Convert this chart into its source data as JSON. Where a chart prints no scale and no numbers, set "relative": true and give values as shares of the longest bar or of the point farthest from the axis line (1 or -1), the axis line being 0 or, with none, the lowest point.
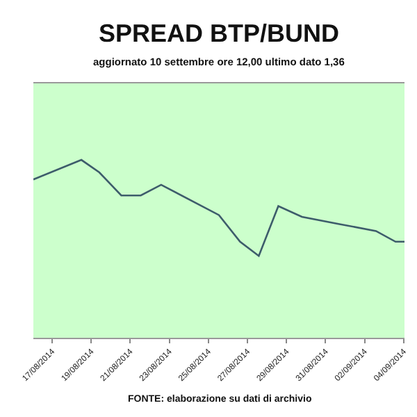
{
  "chart_data": {
    "type": "line",
    "title": "SPREAD BTP/BUND",
    "subtitle": "aggiornato 10 settembre ore 12,00 ultimo dato 1,36",
    "annotations": [
      "FONTE: elaborazione su dati di archivio"
    ],
    "relative": true,
    "x": [
      "2014-08-16T01:00",
      "2014-08-18T12:00",
      "2014-08-19T10:00",
      "2014-08-20T13:00",
      "2014-08-21T13:00",
      "2014-08-22T14:00",
      "2014-08-25T13:00",
      "2014-08-26T15:00",
      "2014-08-27T14:00",
      "2014-08-28T14:00",
      "2014-08-29T19:00",
      "2014-08-31T16:00",
      "2014-09-02T14:00",
      "2014-09-03T14:00",
      "2014-09-04T01:00"
    ],
    "series": [
      {
        "color": "#3d5c6b",
        "values": [
          0.89,
          1,
          0.93,
          0.8,
          0.8,
          0.86,
          0.69,
          0.54,
          0.46,
          0.74,
          0.68,
          0.64,
          0.6,
          0.54,
          0.54
        ]
      }
    ],
    "xlim": [
      "2014-08-16T01:00",
      "2014-09-04T01:00"
    ],
    "xticks": [
      {
        "value": "2014-08-17",
        "label": "17/08/2014"
      },
      {
        "value": "2014-08-19",
        "label": "19/08/2014"
      },
      {
        "value": "2014-08-21",
        "label": "21/08/2014"
      },
      {
        "value": "2014-08-23",
        "label": "23/08/2014"
      },
      {
        "value": "2014-08-25",
        "label": "25/08/2014"
      },
      {
        "value": "2014-08-27",
        "label": "27/08/2014"
      },
      {
        "value": "2014-08-29",
        "label": "29/08/2014"
      },
      {
        "value": "2014-08-31",
        "label": "31/08/2014"
      },
      {
        "value": "2014-09-02",
        "label": "02/09/2014"
      },
      {
        "value": "2014-09-04",
        "label": "04/09/2014"
      }
    ],
    "marker": "none",
    "line_style": "solid",
    "tick_labels": "x"
  }
}
